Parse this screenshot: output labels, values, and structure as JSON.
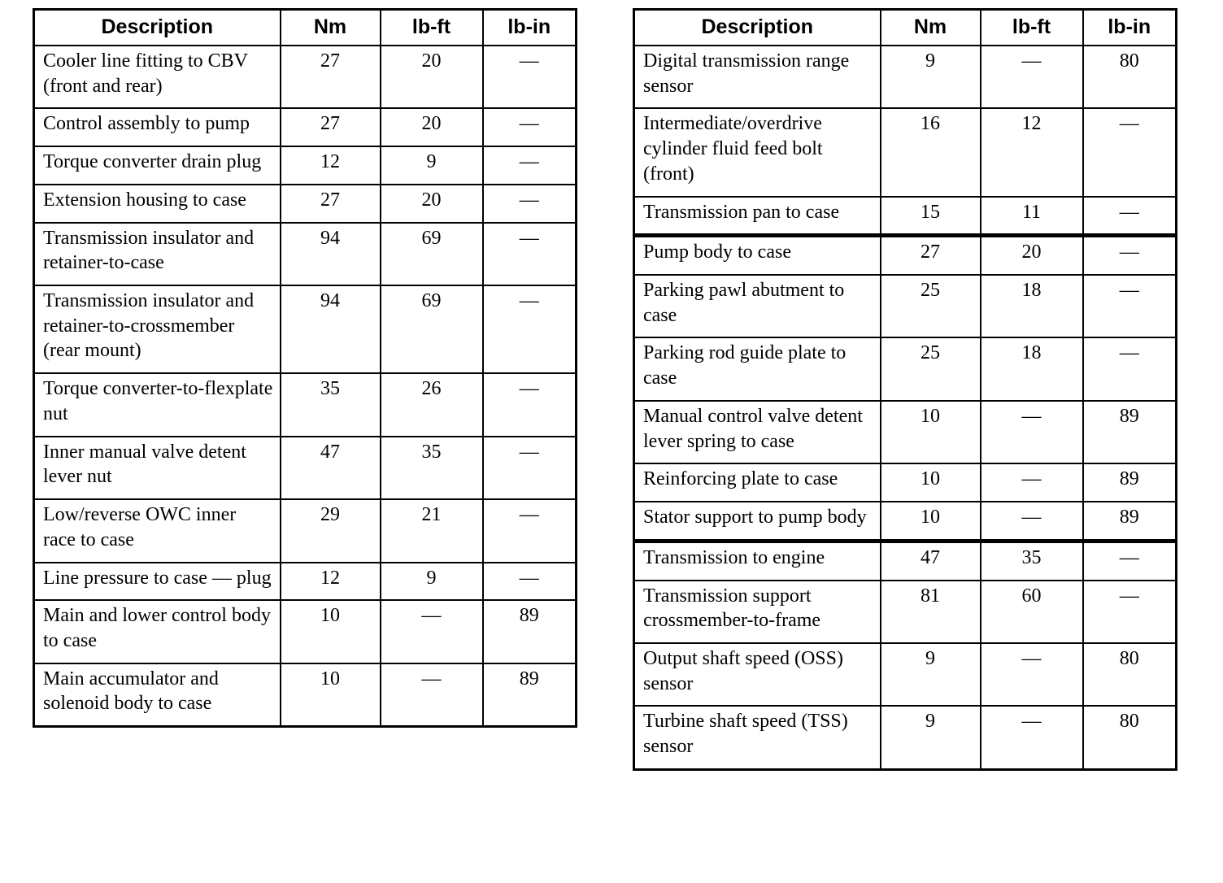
{
  "tables": [
    {
      "name": "left-torque-table",
      "headers": [
        "Description",
        "Nm",
        "lb-ft",
        "lb-in"
      ],
      "rows": [
        {
          "description": "Cooler line fitting to CBV (front and rear)",
          "nm": "27",
          "lb_ft": "20",
          "lb_in": "—"
        },
        {
          "description": "Control assembly to pump",
          "nm": "27",
          "lb_ft": "20",
          "lb_in": "—"
        },
        {
          "description": "Torque converter drain plug",
          "nm": "12",
          "lb_ft": "9",
          "lb_in": "—"
        },
        {
          "description": "Extension housing to case",
          "nm": "27",
          "lb_ft": "20",
          "lb_in": "—"
        },
        {
          "description": "Transmission insulator and retainer-to-case",
          "nm": "94",
          "lb_ft": "69",
          "lb_in": "—"
        },
        {
          "description": "Transmission insulator and retainer-to-crossmember (rear mount)",
          "nm": "94",
          "lb_ft": "69",
          "lb_in": "—"
        },
        {
          "description": "Torque converter-to-flexplate nut",
          "nm": "35",
          "lb_ft": "26",
          "lb_in": "—"
        },
        {
          "description": "Inner manual valve detent lever nut",
          "nm": "47",
          "lb_ft": "35",
          "lb_in": "—"
        },
        {
          "description": "Low/reverse OWC inner race to case",
          "nm": "29",
          "lb_ft": "21",
          "lb_in": "—"
        },
        {
          "description": "Line pressure to case — plug",
          "nm": "12",
          "lb_ft": "9",
          "lb_in": "—"
        },
        {
          "description": "Main and lower control body to case",
          "nm": "10",
          "lb_ft": "—",
          "lb_in": "89"
        },
        {
          "description": "Main accumulator and solenoid body to case",
          "nm": "10",
          "lb_ft": "—",
          "lb_in": "89"
        }
      ]
    },
    {
      "name": "right-torque-table",
      "headers": [
        "Description",
        "Nm",
        "lb-ft",
        "lb-in"
      ],
      "rows": [
        {
          "description": "Digital transmission range sensor",
          "nm": "9",
          "lb_ft": "—",
          "lb_in": "80"
        },
        {
          "description": "Intermediate/overdrive cylinder fluid feed bolt (front)",
          "nm": "16",
          "lb_ft": "12",
          "lb_in": "—"
        },
        {
          "description": "Transmission pan to case",
          "nm": "15",
          "lb_ft": "11",
          "lb_in": "—"
        },
        {
          "description": "Pump body to case",
          "nm": "27",
          "lb_ft": "20",
          "lb_in": "—",
          "thick_top": true
        },
        {
          "description": "Parking pawl abutment to case",
          "nm": "25",
          "lb_ft": "18",
          "lb_in": "—"
        },
        {
          "description": "Parking rod guide plate to case",
          "nm": "25",
          "lb_ft": "18",
          "lb_in": "—"
        },
        {
          "description": "Manual control valve detent lever spring to case",
          "nm": "10",
          "lb_ft": "—",
          "lb_in": "89"
        },
        {
          "description": "Reinforcing plate to case",
          "nm": "10",
          "lb_ft": "—",
          "lb_in": "89"
        },
        {
          "description": "Stator support to pump body",
          "nm": "10",
          "lb_ft": "—",
          "lb_in": "89"
        },
        {
          "description": "Transmission to engine",
          "nm": "47",
          "lb_ft": "35",
          "lb_in": "—",
          "thick_top": true
        },
        {
          "description": "Transmission support crossmember-to-frame",
          "nm": "81",
          "lb_ft": "60",
          "lb_in": "—"
        },
        {
          "description": "Output shaft speed (OSS) sensor",
          "nm": "9",
          "lb_ft": "—",
          "lb_in": "80"
        },
        {
          "description": "Turbine shaft speed (TSS) sensor",
          "nm": "9",
          "lb_ft": "—",
          "lb_in": "80"
        }
      ]
    }
  ]
}
